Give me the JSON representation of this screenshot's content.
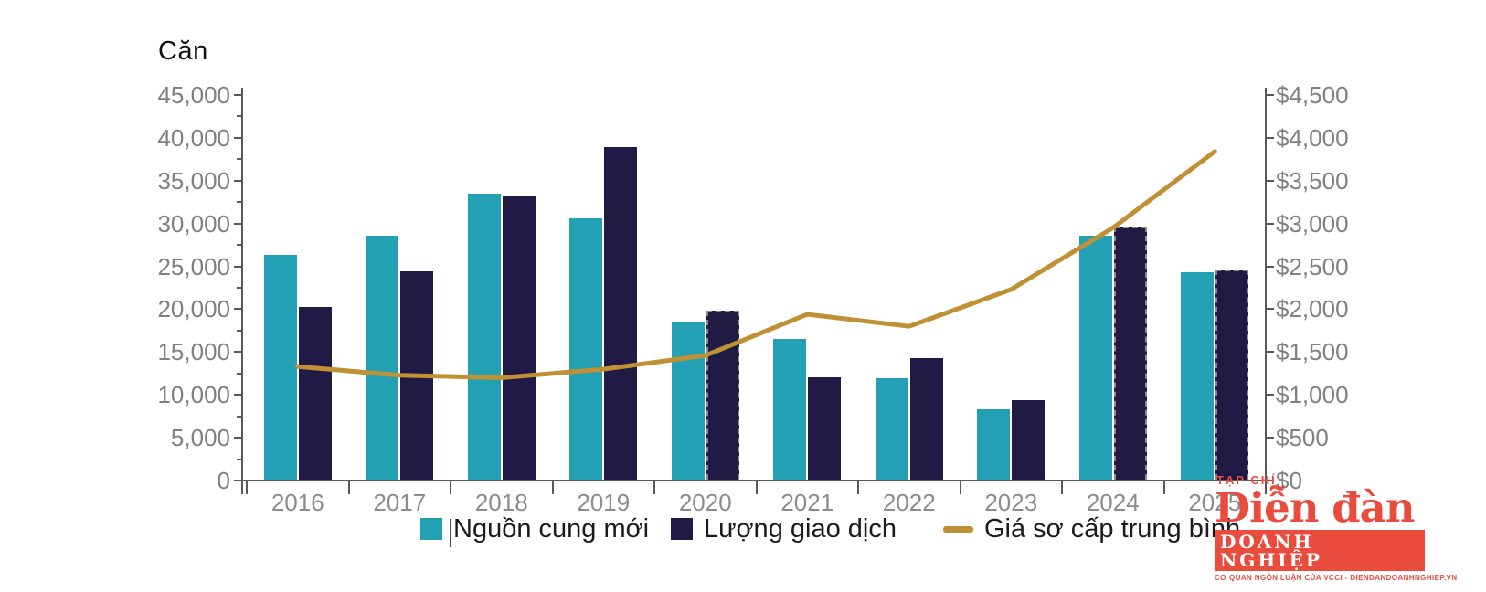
{
  "chart_data": {
    "type": "combo-bar-line",
    "title": "Căn",
    "categories": [
      "2016",
      "2017",
      "2018",
      "2019",
      "2020",
      "2021",
      "2022",
      "2023",
      "2024",
      "2025"
    ],
    "series": [
      {
        "name": "Nguồn cung mới",
        "type": "bar",
        "color": "#24a0b5",
        "axis": "left",
        "values": [
          26300,
          28600,
          33500,
          30600,
          18600,
          16500,
          11900,
          8300,
          28600,
          24300
        ]
      },
      {
        "name": "Lượng giao dịch",
        "type": "bar",
        "color": "#211a45",
        "axis": "left",
        "values": [
          20300,
          24400,
          33300,
          38900,
          19800,
          12100,
          14300,
          9400,
          29600,
          24600
        ],
        "dashed_categories": [
          "2020",
          "2024",
          "2025"
        ]
      },
      {
        "name": "Giá sơ cấp trung bình",
        "type": "line",
        "color": "#bf9134",
        "axis": "right",
        "values": [
          1330,
          1230,
          1200,
          1300,
          1460,
          1940,
          1800,
          2230,
          2950,
          3840
        ]
      }
    ],
    "left_axis": {
      "unit": "Căn",
      "min": 0,
      "max": 45000,
      "step": 5000,
      "tick_labels": [
        "45,000",
        "40,000",
        "35,000",
        "30,000",
        "25,000",
        "20,000",
        "15,000",
        "10,000",
        "5,000",
        "0"
      ]
    },
    "right_axis": {
      "min": 0,
      "max": 4500,
      "step": 500,
      "tick_labels": [
        "$4,500",
        "$4,000",
        "$3,500",
        "$3,000",
        "$2,500",
        "$2,000",
        "$1,500",
        "$1,000",
        "$500",
        "$0"
      ]
    },
    "grid": "off",
    "legend_position": "bottom"
  },
  "logo": {
    "kicker": "TẠP CHÍ",
    "name": "Diễn đàn",
    "banner": "DOANH NGHIỆP",
    "tagline": "CƠ QUAN NGÔN LUẬN CỦA VCCI - DIENDANDOANHNGHIEP.VN",
    "color": "#e94b3c"
  }
}
